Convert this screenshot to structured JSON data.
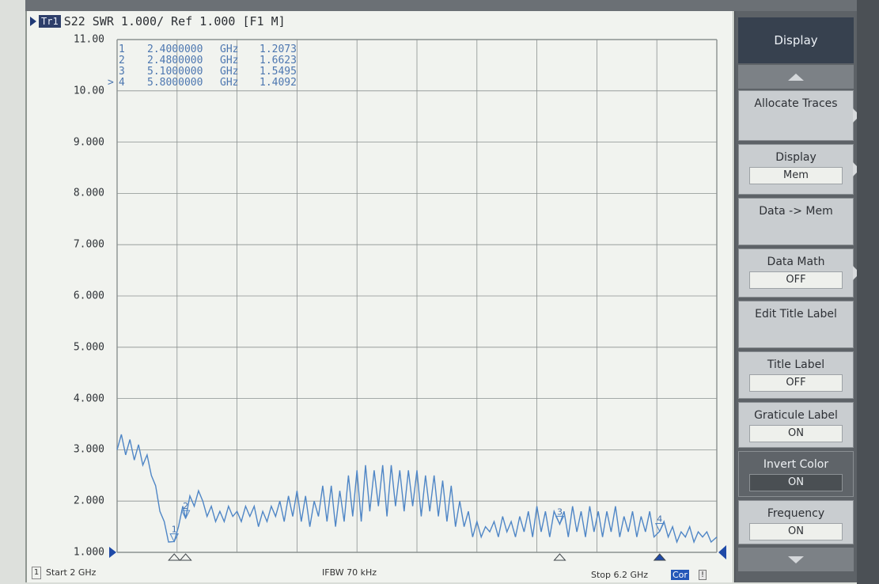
{
  "header": {
    "trace_badge": "Tr1",
    "trace_info": "S22  SWR 1.000/ Ref 1.000 [F1 M]"
  },
  "marker_table": {
    "rows": [
      {
        "id": "1",
        "freq": "2.4000000",
        "unit": "GHz",
        "value": "1.2073",
        "active": false
      },
      {
        "id": "2",
        "freq": "2.4800000",
        "unit": "GHz",
        "value": "1.6623",
        "active": false
      },
      {
        "id": "3",
        "freq": "5.1000000",
        "unit": "GHz",
        "value": "1.5495",
        "active": false
      },
      {
        "id": "4",
        "freq": "5.8000000",
        "unit": "GHz",
        "value": "1.4092",
        "active": true,
        "active_prefix": ">"
      }
    ]
  },
  "y_axis": {
    "ticks": [
      "11.00",
      "10.00",
      "9.000",
      "8.000",
      "7.000",
      "6.000",
      "5.000",
      "4.000",
      "3.000",
      "2.000",
      "1.000"
    ]
  },
  "footer": {
    "channel": "1",
    "start": "Start 2 GHz",
    "ifbw": "IFBW 70 kHz",
    "stop": "Stop 6.2 GHz",
    "cor": "Cor",
    "warning": "!"
  },
  "softkeys": {
    "title": "Display",
    "items": [
      {
        "label": "Allocate Traces",
        "value": null,
        "has_submenu": true,
        "dark": false
      },
      {
        "label": "Display",
        "value": "Mem",
        "has_submenu": true,
        "dark": false
      },
      {
        "label": "Data -> Mem",
        "value": null,
        "has_submenu": false,
        "dark": false
      },
      {
        "label": "Data Math",
        "value": "OFF",
        "has_submenu": true,
        "dark": false
      },
      {
        "label": "Edit Title Label",
        "value": null,
        "has_submenu": false,
        "dark": false
      },
      {
        "label": "Title Label",
        "value": "OFF",
        "has_submenu": false,
        "dark": false
      },
      {
        "label": "Graticule Label",
        "value": "ON",
        "has_submenu": false,
        "dark": false
      },
      {
        "label": "Invert Color",
        "value": "ON",
        "has_submenu": false,
        "dark": true
      },
      {
        "label": "Frequency",
        "value": "ON",
        "has_submenu": false,
        "dark": false
      }
    ]
  },
  "chart_data": {
    "type": "line",
    "x_range_ghz": [
      2.0,
      6.2
    ],
    "ylim": [
      1.0,
      11.0
    ],
    "grid": true,
    "series": [
      {
        "color": "#4f86c6",
        "x": [
          2.0,
          2.03,
          2.06,
          2.09,
          2.12,
          2.15,
          2.18,
          2.21,
          2.24,
          2.27,
          2.3,
          2.33,
          2.36,
          2.4,
          2.43,
          2.46,
          2.48,
          2.51,
          2.54,
          2.57,
          2.6,
          2.63,
          2.66,
          2.69,
          2.72,
          2.75,
          2.78,
          2.81,
          2.84,
          2.87,
          2.9,
          2.93,
          2.96,
          2.99,
          3.02,
          3.05,
          3.08,
          3.11,
          3.14,
          3.17,
          3.2,
          3.23,
          3.26,
          3.29,
          3.32,
          3.35,
          3.38,
          3.41,
          3.44,
          3.47,
          3.5,
          3.53,
          3.56,
          3.59,
          3.62,
          3.65,
          3.68,
          3.71,
          3.74,
          3.77,
          3.8,
          3.83,
          3.86,
          3.89,
          3.92,
          3.95,
          3.98,
          4.01,
          4.04,
          4.07,
          4.1,
          4.13,
          4.16,
          4.19,
          4.22,
          4.25,
          4.28,
          4.31,
          4.34,
          4.37,
          4.4,
          4.43,
          4.46,
          4.49,
          4.52,
          4.55,
          4.58,
          4.61,
          4.64,
          4.67,
          4.7,
          4.73,
          4.76,
          4.79,
          4.82,
          4.85,
          4.88,
          4.91,
          4.94,
          4.97,
          5.0,
          5.03,
          5.06,
          5.1,
          5.13,
          5.16,
          5.19,
          5.22,
          5.25,
          5.28,
          5.31,
          5.34,
          5.37,
          5.4,
          5.43,
          5.46,
          5.49,
          5.52,
          5.55,
          5.58,
          5.61,
          5.64,
          5.67,
          5.7,
          5.73,
          5.76,
          5.8,
          5.83,
          5.86,
          5.89,
          5.92,
          5.95,
          5.98,
          6.01,
          6.04,
          6.07,
          6.1,
          6.13,
          6.16,
          6.2
        ],
        "y": [
          3.0,
          3.3,
          2.9,
          3.2,
          2.8,
          3.1,
          2.7,
          2.9,
          2.5,
          2.3,
          1.8,
          1.6,
          1.2,
          1.21,
          1.5,
          1.9,
          1.66,
          2.1,
          1.9,
          2.2,
          2.0,
          1.7,
          1.9,
          1.6,
          1.8,
          1.6,
          1.9,
          1.7,
          1.8,
          1.6,
          1.9,
          1.7,
          1.9,
          1.5,
          1.8,
          1.6,
          1.9,
          1.7,
          2.0,
          1.6,
          2.1,
          1.7,
          2.2,
          1.6,
          2.1,
          1.5,
          2.0,
          1.7,
          2.3,
          1.6,
          2.3,
          1.5,
          2.2,
          1.6,
          2.5,
          1.7,
          2.6,
          1.6,
          2.7,
          1.8,
          2.6,
          1.9,
          2.7,
          1.7,
          2.7,
          1.9,
          2.6,
          1.8,
          2.6,
          1.9,
          2.6,
          1.7,
          2.5,
          1.8,
          2.5,
          1.7,
          2.4,
          1.6,
          2.3,
          1.5,
          2.0,
          1.5,
          1.8,
          1.3,
          1.6,
          1.3,
          1.5,
          1.4,
          1.6,
          1.3,
          1.7,
          1.4,
          1.6,
          1.3,
          1.7,
          1.4,
          1.8,
          1.3,
          1.9,
          1.4,
          1.8,
          1.3,
          1.8,
          1.55,
          1.8,
          1.3,
          1.9,
          1.4,
          1.8,
          1.3,
          1.9,
          1.4,
          1.8,
          1.3,
          1.8,
          1.4,
          1.9,
          1.3,
          1.7,
          1.4,
          1.8,
          1.3,
          1.7,
          1.4,
          1.8,
          1.3,
          1.41,
          1.6,
          1.3,
          1.5,
          1.2,
          1.4,
          1.3,
          1.5,
          1.2,
          1.4,
          1.3,
          1.4,
          1.2,
          1.3
        ]
      }
    ],
    "markers": [
      {
        "id": "1",
        "x": 2.4,
        "y": 1.2073
      },
      {
        "id": "2",
        "x": 2.48,
        "y": 1.6623
      },
      {
        "id": "3",
        "x": 5.1,
        "y": 1.5495
      },
      {
        "id": "4",
        "x": 5.8,
        "y": 1.4092
      }
    ]
  }
}
